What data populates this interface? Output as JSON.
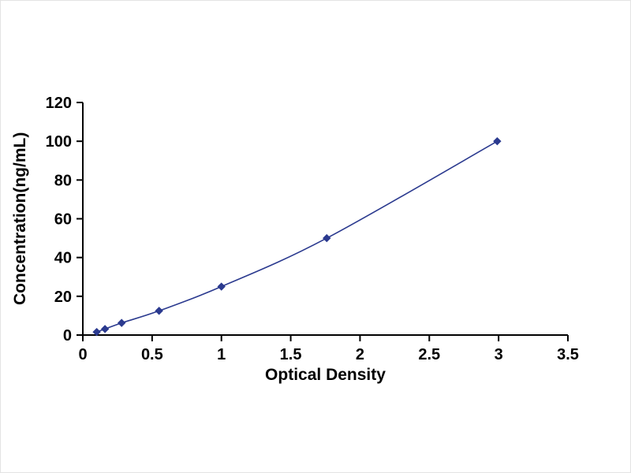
{
  "chart_data": {
    "type": "line",
    "title": "",
    "xlabel": "Optical Density",
    "ylabel": "Concentration(ng/mL)",
    "x": [
      0.1,
      0.16,
      0.28,
      0.55,
      1.0,
      1.76,
      2.99
    ],
    "y": [
      1.56,
      3.12,
      6.25,
      12.5,
      25,
      50,
      100
    ],
    "xlim": [
      0,
      3.5
    ],
    "ylim": [
      0,
      120
    ],
    "x_ticks": [
      0,
      0.5,
      1,
      1.5,
      2,
      2.5,
      3,
      3.5
    ],
    "x_tick_labels": [
      "0",
      "0.5",
      "1",
      "1.5",
      "2",
      "2.5",
      "3",
      "3.5"
    ],
    "y_ticks": [
      0,
      20,
      40,
      60,
      80,
      100,
      120
    ],
    "y_tick_labels": [
      "0",
      "20",
      "40",
      "60",
      "80",
      "100",
      "120"
    ],
    "grid": false,
    "legend": "none",
    "marker": "diamond",
    "line_color": "#2b3a8f",
    "marker_color": "#2b3a8f",
    "axis_color": "#000000",
    "background_color": "#ffffff"
  }
}
